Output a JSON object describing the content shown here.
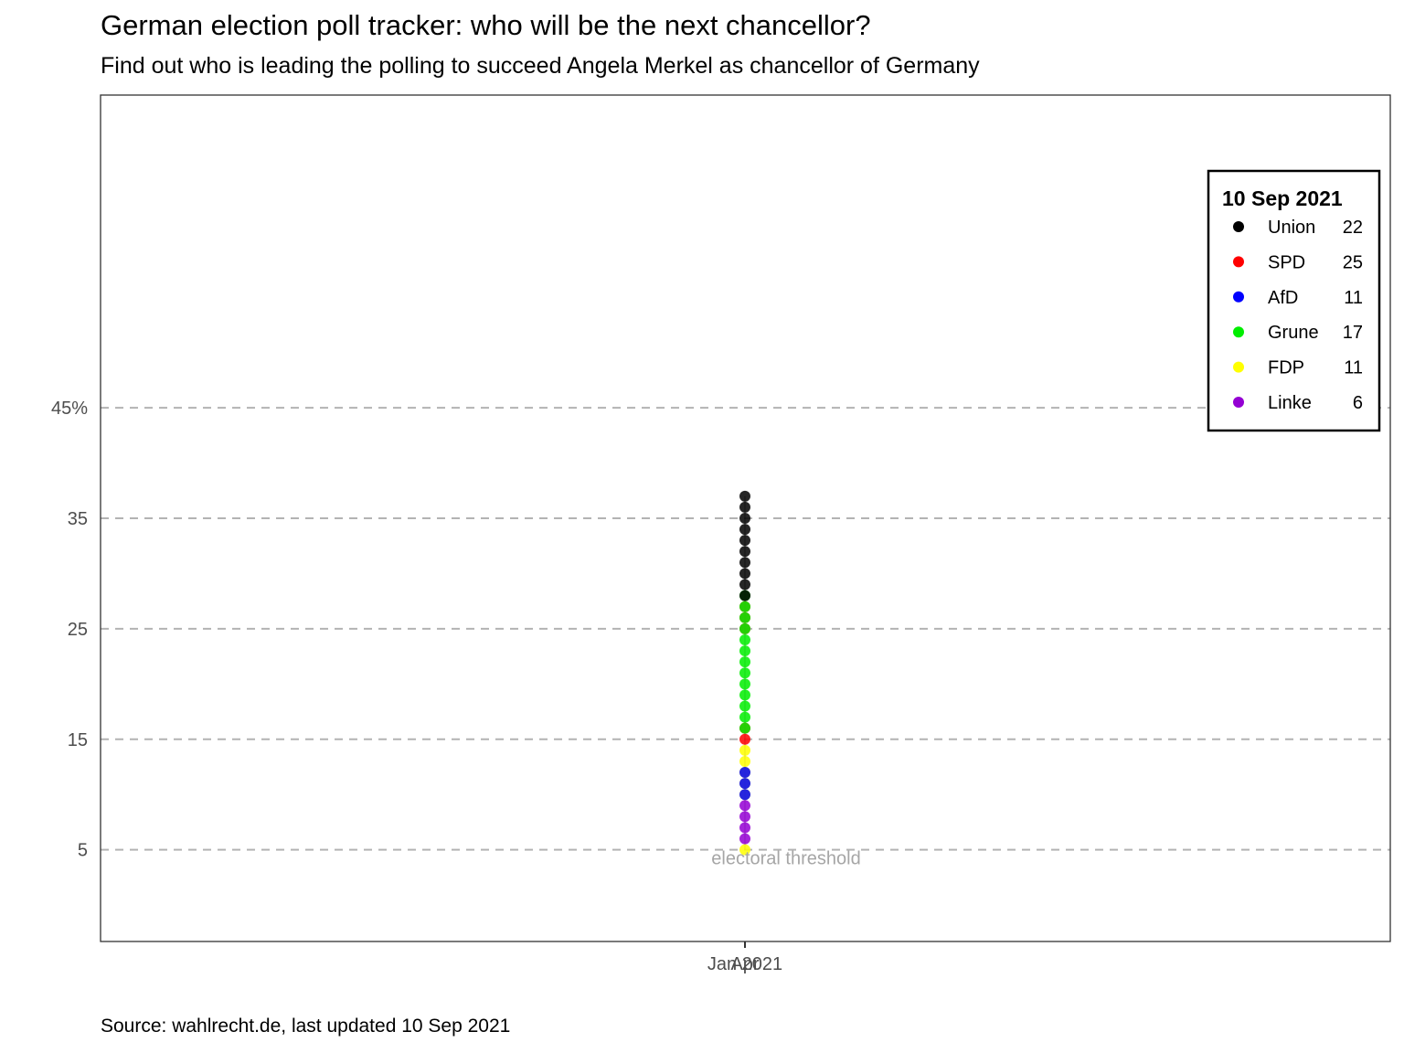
{
  "header": {
    "title": "German election poll tracker: who will be the next chancellor?",
    "subtitle": "Find out who is leading the polling to succeed Angela Merkel as chancellor of Germany"
  },
  "caption": "Source: wahlrecht.de, last updated 10 Sep 2021",
  "chart_data": {
    "type": "scatter",
    "title": "German election poll tracker: who will be the next chancellor?",
    "subtitle": "Find out who is leading the polling to succeed Angela Merkel as chancellor of Germany",
    "xlabel": "",
    "ylabel": "",
    "x_ticks": [
      "Jan 2021",
      "Apr"
    ],
    "y_ticks": [
      {
        "value": 45,
        "label": "45%"
      },
      {
        "value": 35,
        "label": "35"
      },
      {
        "value": 25,
        "label": "25"
      },
      {
        "value": 15,
        "label": "15"
      },
      {
        "value": 5,
        "label": "5"
      }
    ],
    "ylim": [
      -3.3,
      73.3
    ],
    "grid": "horizontal dashed",
    "annotation": {
      "text": "electoral threshold",
      "y": 5
    },
    "legend": {
      "title": "10 Sep 2021",
      "placement": "top-right",
      "entries": [
        {
          "name": "Union",
          "value": "22",
          "color": "#000000"
        },
        {
          "name": "SPD",
          "value": "25",
          "color": "#ff0000"
        },
        {
          "name": "AfD",
          "value": "11",
          "color": "#0000ff"
        },
        {
          "name": "Grune",
          "value": "17",
          "color": "#00ee00"
        },
        {
          "name": "FDP",
          "value": "11",
          "color": "#ffff00"
        },
        {
          "name": "Linke",
          "value": "6",
          "color": "#9400d3"
        }
      ]
    },
    "series": [
      {
        "name": "Union",
        "color": "#000000",
        "x": "Jan 2021",
        "values": [
          37,
          36,
          35,
          34,
          33,
          32,
          31,
          30,
          29,
          28
        ]
      },
      {
        "name": "SPD",
        "color": "#ff0000",
        "x": "Jan 2021",
        "values": [
          27,
          26,
          25,
          16,
          15
        ]
      },
      {
        "name": "AfD",
        "color": "#0000ff",
        "x": "Jan 2021",
        "values": [
          12,
          11,
          10
        ]
      },
      {
        "name": "Grune",
        "color": "#00ee00",
        "x": "Jan 2021",
        "values": [
          28,
          27,
          26,
          25,
          24,
          23,
          22,
          21,
          20,
          19,
          18,
          17,
          16
        ]
      },
      {
        "name": "FDP",
        "color": "#ffff00",
        "x": "Jan 2021",
        "values": [
          14,
          13,
          12,
          11,
          10,
          5
        ]
      },
      {
        "name": "Linke",
        "color": "#9400d3",
        "x": "Jan 2021",
        "values": [
          9,
          8,
          7,
          6
        ]
      }
    ]
  }
}
